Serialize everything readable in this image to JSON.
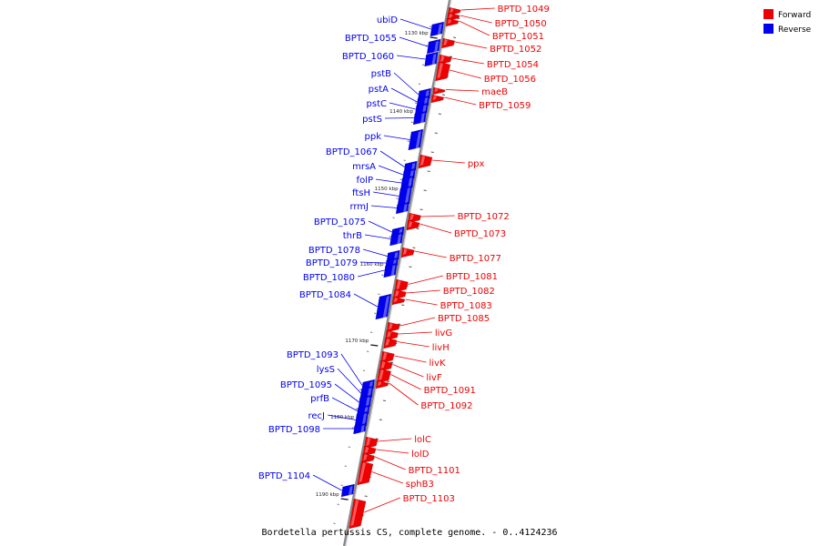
{
  "caption": "Bordetella pertussis CS, complete genome. - 0..4124236",
  "legend": [
    {
      "label": "Forward",
      "color": "#ee0000"
    },
    {
      "label": "Reverse",
      "color": "#0000ee"
    }
  ],
  "colors": {
    "forward": "#ee0000",
    "reverse": "#0000ee",
    "axis": "#888888"
  },
  "ticks": [
    "1130 kbp",
    "1140 kbp",
    "1150 kbp",
    "1160 kbp",
    "1170 kbp",
    "1180 kbp",
    "1190 kbp"
  ],
  "reverse_genes": [
    "ubiD",
    "BPTD_1055",
    "BPTD_1060",
    "pstB",
    "pstA",
    "pstC",
    "pstS",
    "ppk",
    "BPTD_1067",
    "mrsA",
    "folP",
    "ftsH",
    "rrmJ",
    "BPTD_1075",
    "thrB",
    "BPTD_1078",
    "BPTD_1079",
    "BPTD_1080",
    "BPTD_1084",
    "BPTD_1093",
    "lysS",
    "BPTD_1095",
    "prfB",
    "recJ",
    "BPTD_1098",
    "BPTD_1104"
  ],
  "forward_genes": [
    "BPTD_1049",
    "BPTD_1050",
    "BPTD_1051",
    "BPTD_1052",
    "BPTD_1054",
    "BPTD_1056",
    "maeB",
    "BPTD_1059",
    "ppx",
    "BPTD_1072",
    "BPTD_1073",
    "BPTD_1077",
    "BPTD_1081",
    "BPTD_1082",
    "BPTD_1083",
    "BPTD_1085",
    "livG",
    "livH",
    "livK",
    "livF",
    "BPTD_1091",
    "BPTD_1092",
    "lolC",
    "lolD",
    "BPTD_1101",
    "sphB3",
    "BPTD_1103"
  ]
}
